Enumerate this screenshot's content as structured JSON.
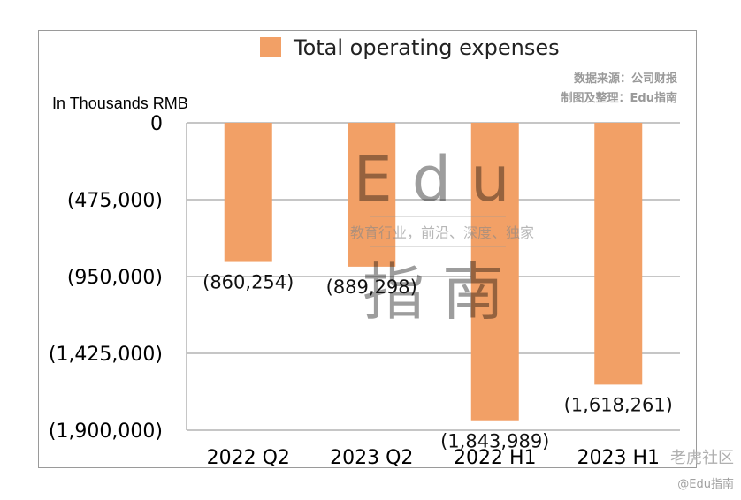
{
  "chart_data": {
    "type": "bar",
    "title": "",
    "legend": [
      {
        "label": "Total operating expenses",
        "color": "#F2A066"
      }
    ],
    "unit_label": "In Thousands RMB",
    "source_lines": [
      "数据来源：公司财报",
      "制图及整理：Edu指南"
    ],
    "categories": [
      "2022 Q2",
      "2023 Q2",
      "2022 H1",
      "2023 H1"
    ],
    "series": [
      {
        "name": "Total operating expenses",
        "values": [
          -860254,
          -889298,
          -1843989,
          -1618261
        ]
      }
    ],
    "data_labels": [
      "(860,254)",
      "(889,298)",
      "(1,843,989)",
      "(1,618,261)"
    ],
    "ylim": [
      -1900000,
      0
    ],
    "yticks": [
      0,
      -475000,
      -950000,
      -1425000,
      -1900000
    ],
    "ytick_labels": [
      "0",
      "(475,000)",
      "(950,000)",
      "(1,425,000)",
      "(1,900,000)"
    ],
    "legend_position": "top-center",
    "grid": true
  },
  "watermark": {
    "big_top": "Edu",
    "tagline": "教育行业，前沿、深度、独家",
    "big_bottom": "指南"
  },
  "corner_watermark": {
    "brand": "老虎社区",
    "handle": "@Edu指南"
  }
}
